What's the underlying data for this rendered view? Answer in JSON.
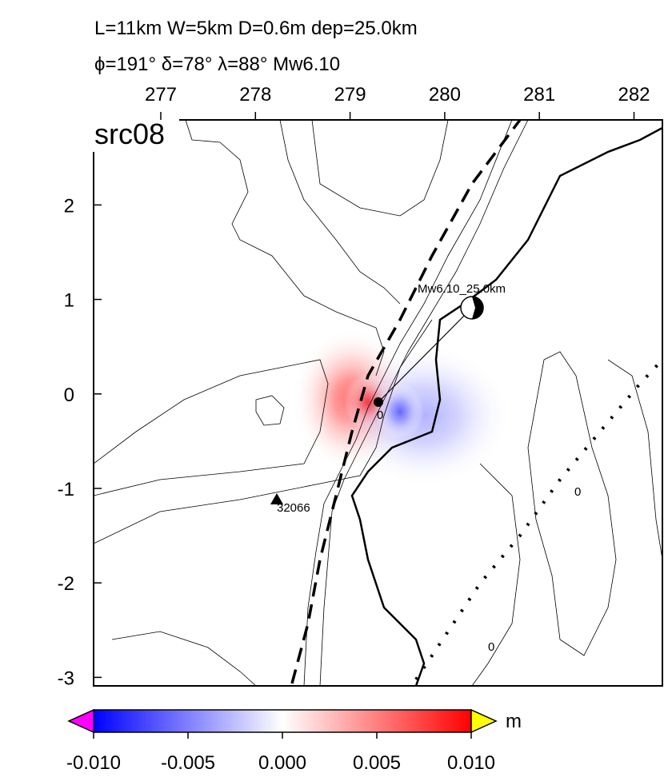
{
  "title": [
    "L=11km W=5km D=0.6m dep=25.0km",
    "ϕ=191° δ=78° λ=88° Mw6.10"
  ],
  "panel_label": "src08",
  "map": {
    "xlim": [
      276.29,
      282.3
    ],
    "ylim": [
      -3.09,
      2.9
    ],
    "xticks": [
      277,
      278,
      279,
      280,
      281,
      282
    ],
    "yticks": [
      2,
      1,
      0,
      -1,
      -2,
      -3
    ]
  },
  "annotations": {
    "mechanism": "Mw6.10_25.0km",
    "epicenter": "0",
    "station": "32066",
    "contour_a": "0",
    "contour_b": "0"
  },
  "colorbar": {
    "lim": [
      -0.01,
      0.01
    ],
    "unit": "m",
    "ticks": [
      {
        "value": -0.01,
        "label": "-0.010"
      },
      {
        "value": -0.005,
        "label": "-0.005"
      },
      {
        "value": 0,
        "label": "0.000"
      },
      {
        "value": 0.005,
        "label": "0.005"
      },
      {
        "value": 0.01,
        "label": "0.010"
      }
    ]
  }
}
